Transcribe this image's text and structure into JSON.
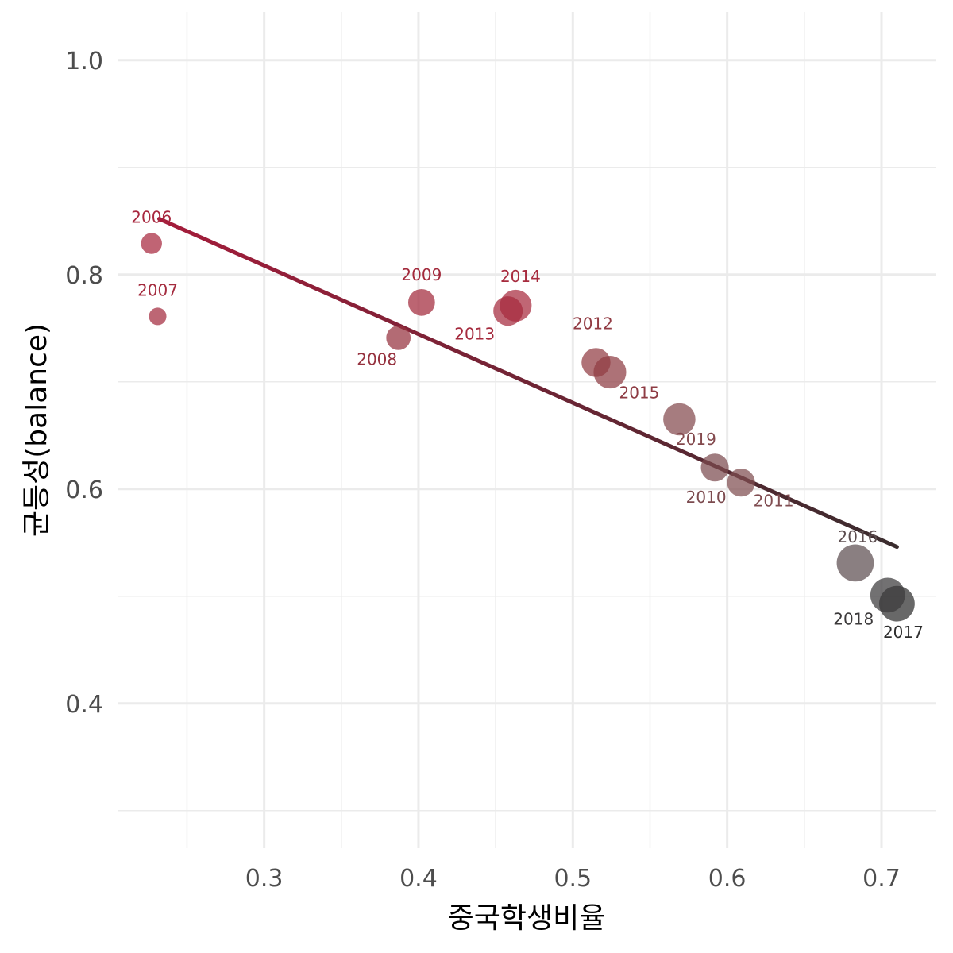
{
  "chart_data": {
    "type": "scatter",
    "title": "",
    "xlabel": "중국학생비율",
    "ylabel": "균등성(balance)",
    "xlim": [
      0.205,
      0.735
    ],
    "ylim": [
      0.265,
      1.045
    ],
    "x_ticks": [
      0.3,
      0.4,
      0.5,
      0.6,
      0.7
    ],
    "x_tick_labels": [
      "0.3",
      "0.4",
      "0.5",
      "0.6",
      "0.7"
    ],
    "y_ticks": [
      0.4,
      0.6,
      0.8,
      1.0
    ],
    "y_tick_labels": [
      "0.4",
      "0.6",
      "0.8",
      "1.0"
    ],
    "grid": true,
    "points": [
      {
        "label": "2006",
        "x": 0.227,
        "y": 0.829,
        "size": 1.0,
        "color": "#a8283f"
      },
      {
        "label": "2007",
        "x": 0.231,
        "y": 0.761,
        "size": 0.6,
        "color": "#a42b3e"
      },
      {
        "label": "2008",
        "x": 0.387,
        "y": 0.741,
        "size": 1.5,
        "color": "#96323f"
      },
      {
        "label": "2009",
        "x": 0.402,
        "y": 0.774,
        "size": 1.9,
        "color": "#a2293b"
      },
      {
        "label": "2013",
        "x": 0.458,
        "y": 0.766,
        "size": 2.4,
        "color": "#a52a3d"
      },
      {
        "label": "2014",
        "x": 0.463,
        "y": 0.771,
        "size": 2.9,
        "color": "#a72b3e"
      },
      {
        "label": "2012",
        "x": 0.515,
        "y": 0.718,
        "size": 2.3,
        "color": "#923b43"
      },
      {
        "label": "2015",
        "x": 0.524,
        "y": 0.709,
        "size": 3.1,
        "color": "#8e3b43"
      },
      {
        "label": "2019",
        "x": 0.569,
        "y": 0.665,
        "size": 3.0,
        "color": "#844a4e"
      },
      {
        "label": "2010",
        "x": 0.592,
        "y": 0.62,
        "size": 2.1,
        "color": "#7c4b4f"
      },
      {
        "label": "2011",
        "x": 0.609,
        "y": 0.606,
        "size": 2.1,
        "color": "#804d51"
      },
      {
        "label": "2016",
        "x": 0.683,
        "y": 0.531,
        "size": 4.2,
        "color": "#5d4e50"
      },
      {
        "label": "2018",
        "x": 0.704,
        "y": 0.501,
        "size": 3.6,
        "color": "#3c3a3b"
      },
      {
        "label": "2017",
        "x": 0.71,
        "y": 0.493,
        "size": 3.8,
        "color": "#2e2e2e"
      }
    ],
    "trend_line": {
      "x0": 0.232,
      "y0": 0.852,
      "x1": 0.71,
      "y1": 0.546,
      "color_start": "#a51c3b",
      "color_end": "#3a2c2e"
    }
  }
}
